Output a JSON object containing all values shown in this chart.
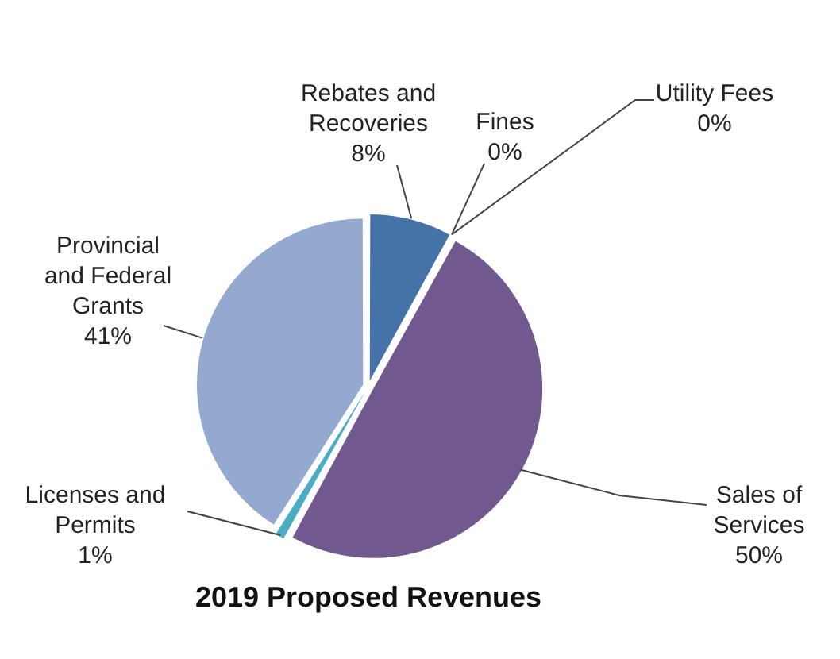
{
  "chart_data": {
    "type": "pie",
    "title": "2019 Proposed Revenues",
    "categories": [
      "Rebates and Recoveries",
      "Fines",
      "Utility Fees",
      "Sales of Services",
      "Licenses and Permits",
      "Provincial and Federal Grants"
    ],
    "values": [
      8,
      0,
      0,
      50,
      1,
      41
    ],
    "value_labels": [
      "8%",
      "0%",
      "0%",
      "50%",
      "1%",
      "41%"
    ],
    "colors": [
      "#4572a7",
      "#c0504d",
      "#9bbb59",
      "#71588f",
      "#4bacc6",
      "#93a9cf"
    ],
    "legend": false
  }
}
